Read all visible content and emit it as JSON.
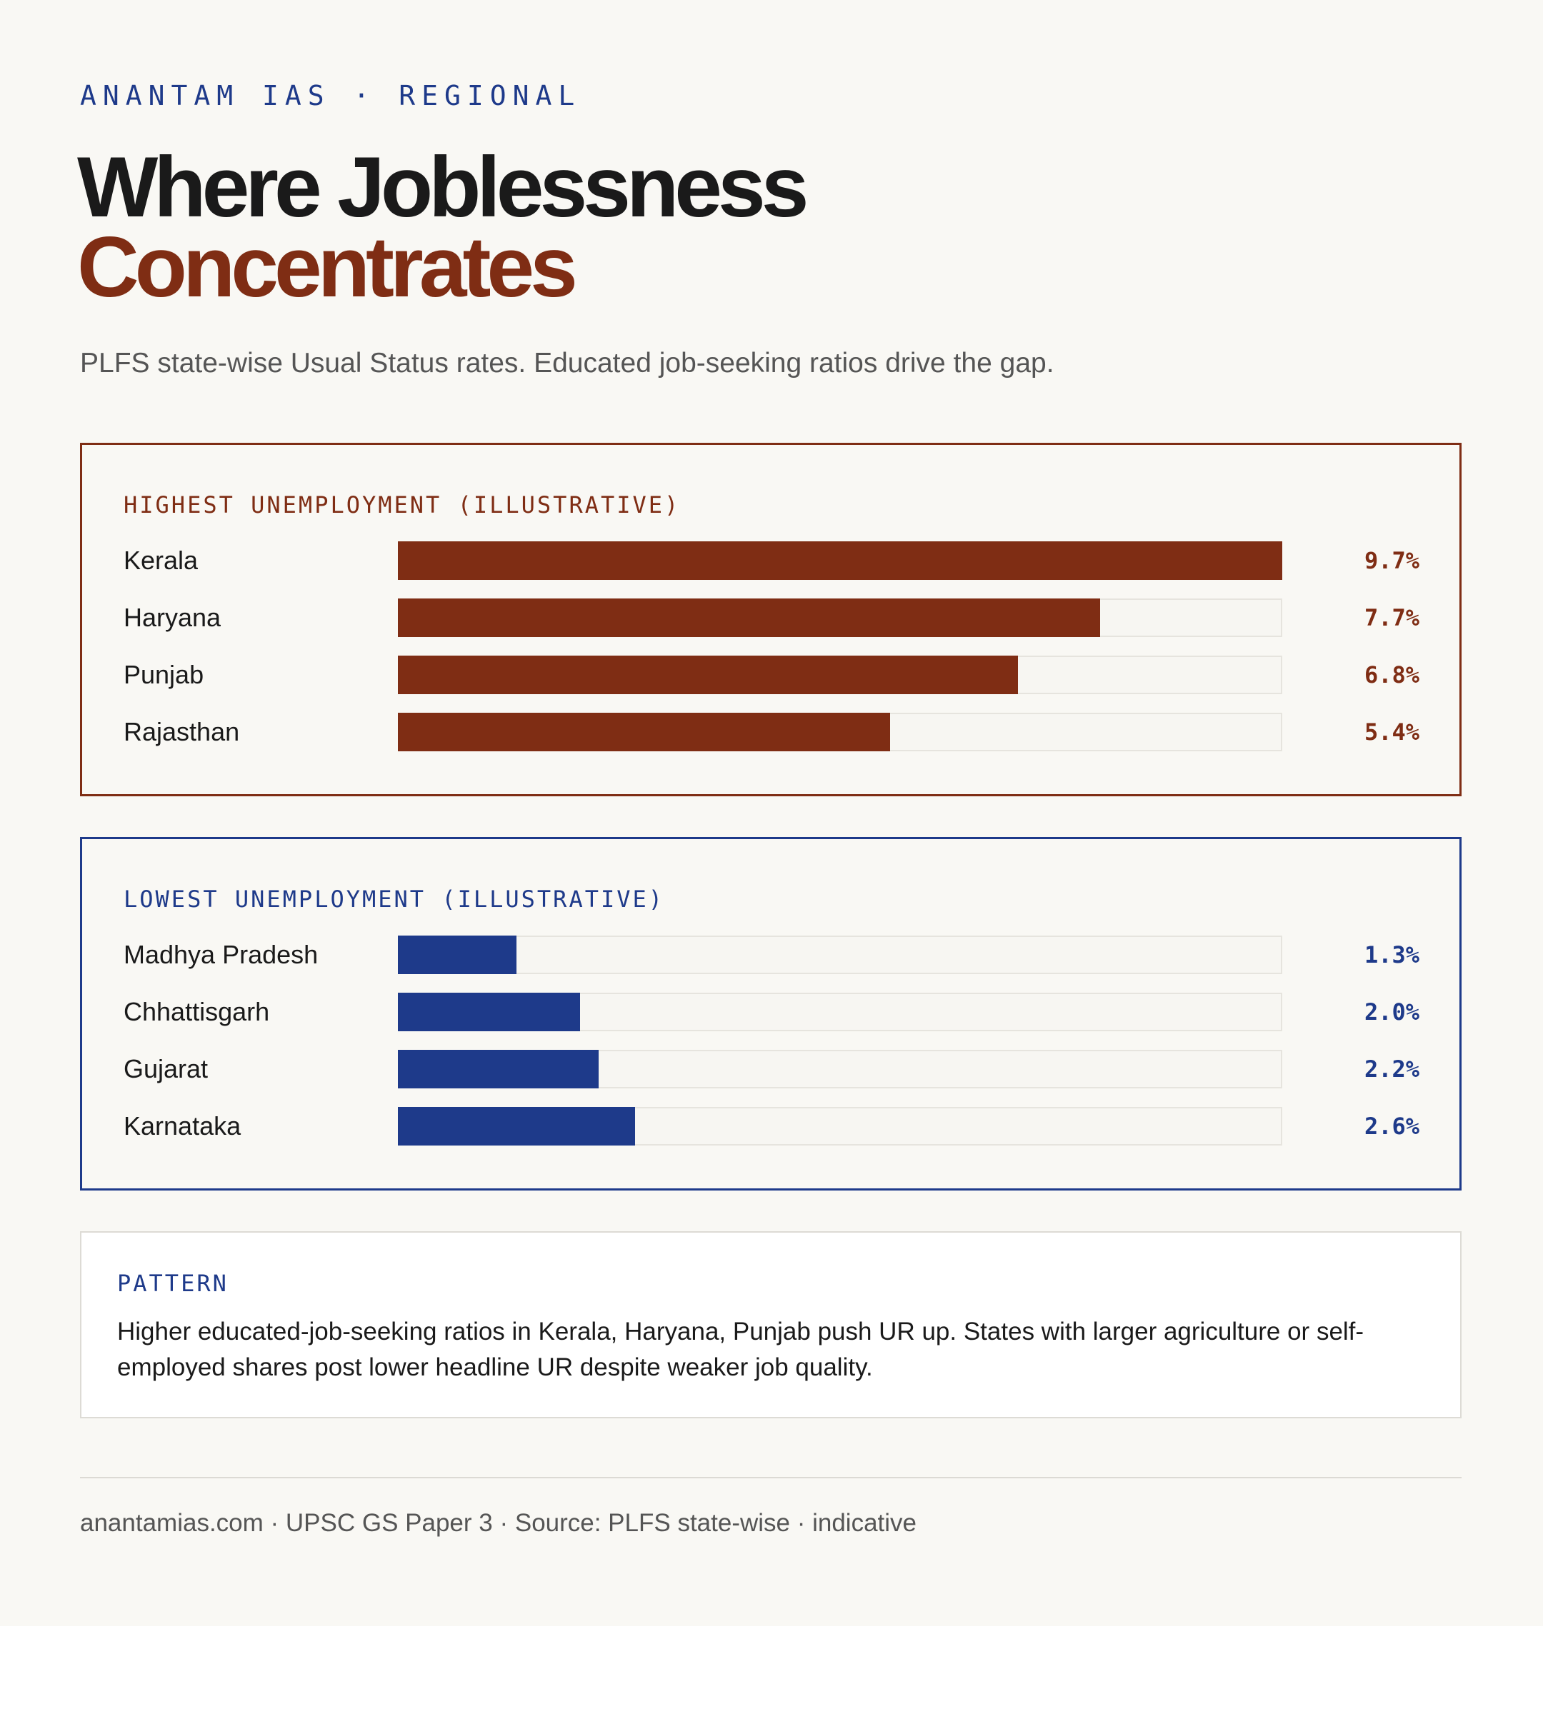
{
  "kicker": "ANANTAM IAS · REGIONAL",
  "title_line1": "Where Joblessness",
  "title_line2": "Concentrates",
  "subtitle": "PLFS state-wise Usual Status rates. Educated job-seeking ratios drive the gap.",
  "colors": {
    "high": "#7f2d14",
    "low": "#1e3a8a",
    "title": "#1a1a1a",
    "background": "#f9f8f4"
  },
  "chart_data": [
    {
      "type": "bar",
      "orientation": "horizontal",
      "title": "HIGHEST UNEMPLOYMENT (ILLUSTRATIVE)",
      "categories": [
        "Kerala",
        "Haryana",
        "Punjab",
        "Rajasthan"
      ],
      "values": [
        9.7,
        7.7,
        6.8,
        5.4
      ],
      "value_labels": [
        "9.7%",
        "7.7%",
        "6.8%",
        "5.4%"
      ],
      "xlim": [
        0,
        9.7
      ],
      "grid": false
    },
    {
      "type": "bar",
      "orientation": "horizontal",
      "title": "LOWEST UNEMPLOYMENT (ILLUSTRATIVE)",
      "categories": [
        "Madhya Pradesh",
        "Chhattisgarh",
        "Gujarat",
        "Karnataka"
      ],
      "values": [
        1.3,
        2.0,
        2.2,
        2.6
      ],
      "value_labels": [
        "1.3%",
        "2.0%",
        "2.2%",
        "2.6%"
      ],
      "xlim": [
        0,
        9.7
      ],
      "grid": false
    }
  ],
  "pattern": {
    "heading": "PATTERN",
    "text": "Higher educated-job-seeking ratios in Kerala, Haryana, Punjab push UR up. States with larger agriculture or self-employed shares post lower headline UR despite weaker job quality."
  },
  "footer": "anantamias.com · UPSC GS Paper 3 · Source: PLFS state-wise · indicative"
}
